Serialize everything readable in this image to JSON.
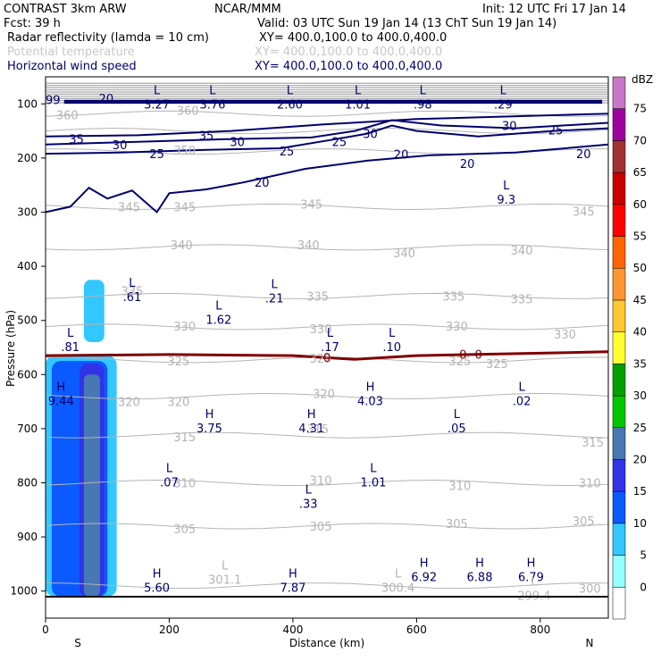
{
  "header": {
    "left_title": "CONTRAST  3km ARW",
    "center_title": "NCAR/MMM",
    "init": "Init: 12 UTC Fri 17 Jan 14",
    "fcst": "Fcst:   39 h",
    "valid": "Valid: 03 UTC Sun 19 Jan 14 (13 ChT Sun 19 Jan 14)",
    "fields": [
      {
        "name": "Radar reflectivity (lamda = 10 cm)",
        "xy": "XY= 400.0,100.0 to 400.0,400.0",
        "color": "#000000"
      },
      {
        "name": "Potential temperature",
        "xy": "XY= 400.0,100.0 to 400.0,400.0",
        "color": "#c8c8c8"
      },
      {
        "name": "Horizontal wind speed",
        "xy": "XY= 400.0,100.0 to 400.0,400.0",
        "color": "#00006e"
      }
    ]
  },
  "chart_data": {
    "type": "cross-section",
    "xlabel": "Distance (km)",
    "ylabel": "Pressure (hPa)",
    "xlim": [
      0,
      910
    ],
    "ylim": [
      1050,
      50
    ],
    "xticks": [
      0,
      200,
      400,
      600,
      800
    ],
    "yticks": [
      100,
      200,
      300,
      400,
      500,
      600,
      700,
      800,
      900,
      1000
    ],
    "x_end_labels": {
      "left": "S",
      "right": "N"
    },
    "colorbar": {
      "unit": "dBZ",
      "levels": [
        0,
        5,
        10,
        15,
        20,
        25,
        30,
        35,
        40,
        45,
        50,
        55,
        60,
        65,
        70,
        75
      ],
      "colors": [
        "#ffffff",
        "#96ffff",
        "#32c8ff",
        "#0a5aff",
        "#3232e6",
        "#4678b4",
        "#00c800",
        "#00a000",
        "#ffff32",
        "#ffc832",
        "#ff9632",
        "#ff6400",
        "#ff0000",
        "#c80000",
        "#a03232",
        "#a000a0",
        "#c878c8"
      ]
    },
    "reflectivity_regions": [
      {
        "dbz": 5,
        "x_range": [
          0,
          115
        ],
        "p_range": [
          565,
          1010
        ]
      },
      {
        "dbz": 10,
        "x_range": [
          10,
          100
        ],
        "p_range": [
          575,
          1010
        ]
      },
      {
        "dbz": 15,
        "x_range": [
          55,
          95
        ],
        "p_range": [
          580,
          1010
        ]
      },
      {
        "dbz": 20,
        "x_range": [
          62,
          88
        ],
        "p_range": [
          600,
          1010
        ]
      },
      {
        "dbz": 5,
        "x_range": [
          62,
          95
        ],
        "p_range": [
          425,
          540
        ]
      }
    ],
    "theta_contours": [
      300,
      305,
      310,
      315,
      320,
      325,
      330,
      335,
      340,
      345,
      350,
      355,
      360
    ],
    "theta_labels": [
      {
        "text": "360",
        "x": 35,
        "p": 120
      },
      {
        "text": "360",
        "x": 230,
        "p": 112
      },
      {
        "text": "350",
        "x": 225,
        "p": 185
      },
      {
        "text": "345",
        "x": 135,
        "p": 290
      },
      {
        "text": "345",
        "x": 225,
        "p": 290
      },
      {
        "text": "345",
        "x": 430,
        "p": 285
      },
      {
        "text": "345",
        "x": 870,
        "p": 298
      },
      {
        "text": "340",
        "x": 220,
        "p": 360
      },
      {
        "text": "340",
        "x": 425,
        "p": 360
      },
      {
        "text": "340",
        "x": 580,
        "p": 375
      },
      {
        "text": "340",
        "x": 770,
        "p": 370
      },
      {
        "text": "335",
        "x": 140,
        "p": 445
      },
      {
        "text": "335",
        "x": 440,
        "p": 455
      },
      {
        "text": "335",
        "x": 660,
        "p": 455
      },
      {
        "text": "335",
        "x": 770,
        "p": 460
      },
      {
        "text": "330",
        "x": 225,
        "p": 510
      },
      {
        "text": "330",
        "x": 445,
        "p": 515
      },
      {
        "text": "330",
        "x": 665,
        "p": 510
      },
      {
        "text": "330",
        "x": 840,
        "p": 525
      },
      {
        "text": "325",
        "x": 215,
        "p": 575
      },
      {
        "text": "325",
        "x": 445,
        "p": 570
      },
      {
        "text": "325",
        "x": 670,
        "p": 575
      },
      {
        "text": "325",
        "x": 730,
        "p": 580
      },
      {
        "text": "320",
        "x": 135,
        "p": 650
      },
      {
        "text": "320",
        "x": 215,
        "p": 650
      },
      {
        "text": "320",
        "x": 450,
        "p": 635
      },
      {
        "text": "315",
        "x": 225,
        "p": 715
      },
      {
        "text": "315",
        "x": 440,
        "p": 700
      },
      {
        "text": "315",
        "x": 885,
        "p": 725
      },
      {
        "text": "310",
        "x": 225,
        "p": 800
      },
      {
        "text": "310",
        "x": 445,
        "p": 795
      },
      {
        "text": "310",
        "x": 670,
        "p": 805
      },
      {
        "text": "310",
        "x": 880,
        "p": 800
      },
      {
        "text": "305",
        "x": 225,
        "p": 885
      },
      {
        "text": "305",
        "x": 445,
        "p": 880
      },
      {
        "text": "305",
        "x": 665,
        "p": 875
      },
      {
        "text": "305",
        "x": 870,
        "p": 870
      },
      {
        "text": "300",
        "x": 880,
        "p": 995
      }
    ],
    "wind_contour_levels": [
      20,
      25,
      30,
      35
    ],
    "wind_labels": [
      {
        "text": "99",
        "x": 12,
        "p": 92
      },
      {
        "text": "20",
        "x": 98,
        "p": 90
      },
      {
        "text": "35",
        "x": 50,
        "p": 165
      },
      {
        "text": "35",
        "x": 260,
        "p": 158
      },
      {
        "text": "30",
        "x": 120,
        "p": 175
      },
      {
        "text": "30",
        "x": 310,
        "p": 170
      },
      {
        "text": "30",
        "x": 525,
        "p": 155
      },
      {
        "text": "30",
        "x": 750,
        "p": 140
      },
      {
        "text": "25",
        "x": 180,
        "p": 192
      },
      {
        "text": "25",
        "x": 390,
        "p": 187
      },
      {
        "text": "25",
        "x": 475,
        "p": 170
      },
      {
        "text": "25",
        "x": 825,
        "p": 148
      },
      {
        "text": "20",
        "x": 350,
        "p": 245
      },
      {
        "text": "20",
        "x": 575,
        "p": 193
      },
      {
        "text": "20",
        "x": 682,
        "p": 210
      },
      {
        "text": "20",
        "x": 870,
        "p": 192
      },
      {
        "text": "0",
        "x": 455,
        "p": 568
      },
      {
        "text": "0",
        "x": 675,
        "p": 562
      },
      {
        "text": "0",
        "x": 700,
        "p": 562
      }
    ],
    "extrema": [
      {
        "kind": "L",
        "value": "3.27",
        "x": 180,
        "p": 92
      },
      {
        "kind": "L",
        "value": "3.76",
        "x": 270,
        "p": 92
      },
      {
        "kind": "L",
        "value": "2.60",
        "x": 395,
        "p": 92
      },
      {
        "kind": "L",
        "value": "1.01",
        "x": 505,
        "p": 92
      },
      {
        "kind": "L",
        "value": ".98",
        "x": 610,
        "p": 92
      },
      {
        "kind": "L",
        "value": ".29",
        "x": 740,
        "p": 92
      },
      {
        "kind": "L",
        "value": "9.3",
        "x": 745,
        "p": 268
      },
      {
        "kind": "L",
        "value": ".61",
        "x": 140,
        "p": 448
      },
      {
        "kind": "L",
        "value": ".21",
        "x": 370,
        "p": 450
      },
      {
        "kind": "L",
        "value": "1.62",
        "x": 280,
        "p": 490
      },
      {
        "kind": "L",
        "value": ".81",
        "x": 40,
        "p": 540
      },
      {
        "kind": "L",
        "value": ".17",
        "x": 460,
        "p": 540
      },
      {
        "kind": "L",
        "value": ".10",
        "x": 560,
        "p": 540
      },
      {
        "kind": "H",
        "value": "9.44",
        "x": 25,
        "p": 640
      },
      {
        "kind": "H",
        "value": "4.03",
        "x": 525,
        "p": 640
      },
      {
        "kind": "L",
        "value": ".02",
        "x": 770,
        "p": 640
      },
      {
        "kind": "H",
        "value": "3.75",
        "x": 265,
        "p": 690
      },
      {
        "kind": "H",
        "value": "4.31",
        "x": 430,
        "p": 690
      },
      {
        "kind": "L",
        "value": ".05",
        "x": 665,
        "p": 690
      },
      {
        "kind": "L",
        "value": ".07",
        "x": 200,
        "p": 790
      },
      {
        "kind": "L",
        "value": "1.01",
        "x": 530,
        "p": 790
      },
      {
        "kind": "L",
        "value": ".33",
        "x": 425,
        "p": 830
      },
      {
        "kind": "H",
        "value": "5.60",
        "x": 180,
        "p": 985
      },
      {
        "kind": "L",
        "value": "301.1",
        "x": 290,
        "p": 970
      },
      {
        "kind": "H",
        "value": "7.87",
        "x": 400,
        "p": 985
      },
      {
        "kind": "L",
        "value": "300.4",
        "x": 570,
        "p": 985
      },
      {
        "kind": "H",
        "value": "6.92",
        "x": 612,
        "p": 965
      },
      {
        "kind": "H",
        "value": "6.88",
        "x": 702,
        "p": 965
      },
      {
        "kind": "H",
        "value": "6.79",
        "x": 785,
        "p": 965
      },
      {
        "kind": "L",
        "value": "299.4",
        "x": 790,
        "p": 1000
      }
    ]
  }
}
